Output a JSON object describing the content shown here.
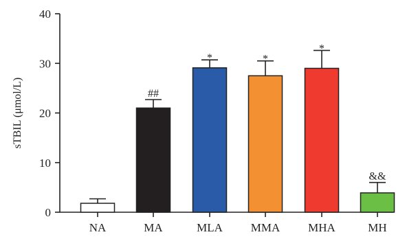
{
  "chart_data": {
    "type": "bar",
    "categories": [
      "NA",
      "MA",
      "MLA",
      "MMA",
      "MHA",
      "MH"
    ],
    "values": [
      1.8,
      21.0,
      29.1,
      27.5,
      29.0,
      3.9
    ],
    "errors": [
      0.9,
      1.7,
      1.6,
      3.0,
      3.6,
      2.1
    ],
    "annotations": [
      "",
      "##",
      "*",
      "*",
      "*",
      "&&"
    ],
    "colors": [
      "#ffffff",
      "#231f20",
      "#2a5ba8",
      "#f39031",
      "#ee3a2f",
      "#6cbf45"
    ],
    "title": "",
    "xlabel": "",
    "ylabel": "sTBIL (μmol/L)",
    "ylim": [
      0,
      40
    ],
    "yticks": [
      0,
      10,
      20,
      30,
      40
    ],
    "grid": false
  }
}
